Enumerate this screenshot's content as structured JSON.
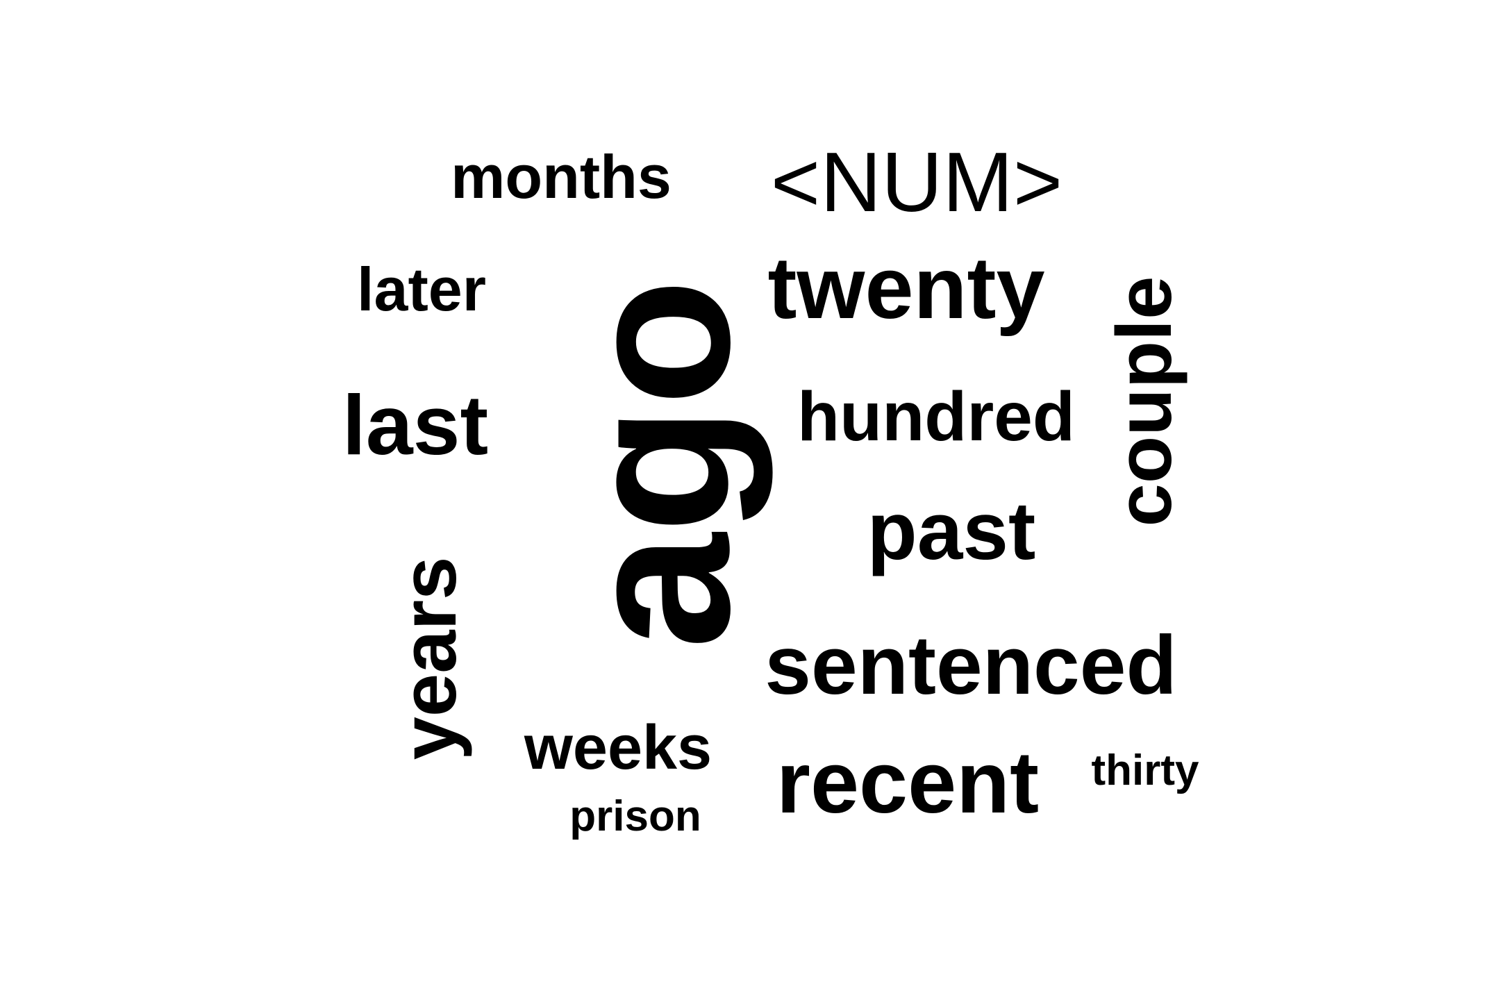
{
  "word_cloud": {
    "words": {
      "ago": "ago",
      "num": "<NUM>",
      "twenty": "twenty",
      "months": "months",
      "later": "later",
      "last": "last",
      "hundred": "hundred",
      "couple": "couple",
      "past": "past",
      "years": "years",
      "sentenced": "sentenced",
      "weeks": "weeks",
      "recent": "recent",
      "thirty": "thirty",
      "prison": "prison"
    },
    "colors": {
      "text": "#000000",
      "background": "#ffffff"
    }
  }
}
